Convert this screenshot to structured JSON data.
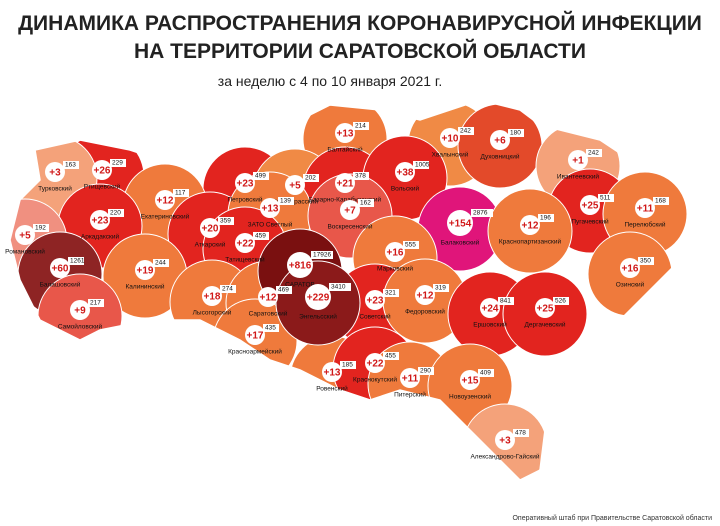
{
  "title": [
    "ДИНАМИКА РАСПРОСТРАНЕНИЯ КОРОНАВИРУСНОЙ ИНФЕКЦИИ",
    "НА ТЕРРИТОРИИ САРАТОВСКОЙ ОБЛАСТИ"
  ],
  "subtitle": "за неделю с 4 по 10 января 2021 г.",
  "regions": [
    {
      "name": "Балтайский",
      "increase": "+13",
      "total": 214,
      "color": "#ef7a3c"
    },
    {
      "name": "Хвалынский",
      "increase": "+10",
      "total": 242,
      "color": "#f08a45"
    },
    {
      "name": "Духовницкий",
      "increase": "+6",
      "total": 180,
      "color": "#e34a2a"
    },
    {
      "name": "Ивантеевский",
      "increase": "+1",
      "total": 242,
      "color": "#f4a27a"
    },
    {
      "name": "Ртищевский",
      "increase": "+26",
      "total": 229,
      "color": "#e2241f"
    },
    {
      "name": "Турковский",
      "increase": "+3",
      "total": 163,
      "color": "#f4a27a"
    },
    {
      "name": "Петровский",
      "increase": "+23",
      "total": 499,
      "color": "#e2241f"
    },
    {
      "name": "Новобурасский",
      "increase": "+5",
      "total": 202,
      "color": "#f08a45"
    },
    {
      "name": "Базарно-Карабулакский",
      "increase": "+21",
      "total": 378,
      "color": "#e2241f"
    },
    {
      "name": "Вольский",
      "increase": "+38",
      "total": 1005,
      "color": "#e2241f"
    },
    {
      "name": "Пугачевский",
      "increase": "+25",
      "total": 511,
      "color": "#e2241f"
    },
    {
      "name": "Перелюбский",
      "increase": "+11",
      "total": 168,
      "color": "#ef7a3c"
    },
    {
      "name": "Екатериновский",
      "increase": "+12",
      "total": 117,
      "color": "#ef7a3c"
    },
    {
      "name": "Аркадакский",
      "increase": "+23",
      "total": 220,
      "color": "#e2241f"
    },
    {
      "name": "Аткарский",
      "increase": "+20",
      "total": 359,
      "color": "#e2241f"
    },
    {
      "name": "ЗАТО Светлый",
      "increase": "+13",
      "total": 139,
      "color": "#ef7a3c"
    },
    {
      "name": "Татищевский",
      "increase": "+22",
      "total": 459,
      "color": "#e2241f"
    },
    {
      "name": "Воскресенский",
      "increase": "+7",
      "total": 162,
      "color": "#e8574a"
    },
    {
      "name": "Балаковский",
      "increase": "+154",
      "total": 2876,
      "color": "#e0157a"
    },
    {
      "name": "Краснопартизанский",
      "increase": "+12",
      "total": 196,
      "color": "#ef7a3c"
    },
    {
      "name": "Романовский",
      "increase": "+5",
      "total": 192,
      "color": "#f09080"
    },
    {
      "name": "САРАТОВ",
      "increase": "+816",
      "total": 17926,
      "color": "#7a1010"
    },
    {
      "name": "Марковский",
      "increase": "+16",
      "total": 555,
      "color": "#ef7a3c"
    },
    {
      "name": "Озинский",
      "increase": "+16",
      "total": 350,
      "color": "#ef7a3c"
    },
    {
      "name": "Балашовский",
      "increase": "+60",
      "total": 1261,
      "color": "#8e2424"
    },
    {
      "name": "Калининский",
      "increase": "+19",
      "total": 244,
      "color": "#ef7a3c"
    },
    {
      "name": "Энгельсский",
      "increase": "+229",
      "total": 3410,
      "color": "#8b1a1a"
    },
    {
      "name": "Советский",
      "increase": "+23",
      "total": 321,
      "color": "#e2241f"
    },
    {
      "name": "Федоровский",
      "increase": "+12",
      "total": 319,
      "color": "#ef7a3c"
    },
    {
      "name": "Лысогорский",
      "increase": "+18",
      "total": 274,
      "color": "#ef7a3c"
    },
    {
      "name": "Саратовский",
      "increase": "+12",
      "total": 469,
      "color": "#ef7a3c"
    },
    {
      "name": "Ровенский",
      "increase": "+13",
      "total": 185,
      "color": "#ef7a3c"
    },
    {
      "name": "Краснокутский",
      "increase": "+22",
      "total": 455,
      "color": "#e2241f"
    },
    {
      "name": "Ершовский",
      "increase": "+24",
      "total": 841,
      "color": "#e2241f"
    },
    {
      "name": "Дергачевский",
      "increase": "+25",
      "total": 526,
      "color": "#e2241f"
    },
    {
      "name": "Самойловский",
      "increase": "+9",
      "total": 217,
      "color": "#e8574a"
    },
    {
      "name": "Красноармейский",
      "increase": "+17",
      "total": 435,
      "color": "#ef7a3c"
    },
    {
      "name": "Питерский",
      "increase": "+11",
      "total": 290,
      "color": "#ef7a3c"
    },
    {
      "name": "Новоузенский",
      "increase": "+15",
      "total": 409,
      "color": "#ef7a3c"
    },
    {
      "name": "Александрово-Гайский",
      "increase": "+3",
      "total": 478,
      "color": "#f4a27a"
    }
  ],
  "footer": "Оперативный штаб при Правительстве Саратовской области"
}
